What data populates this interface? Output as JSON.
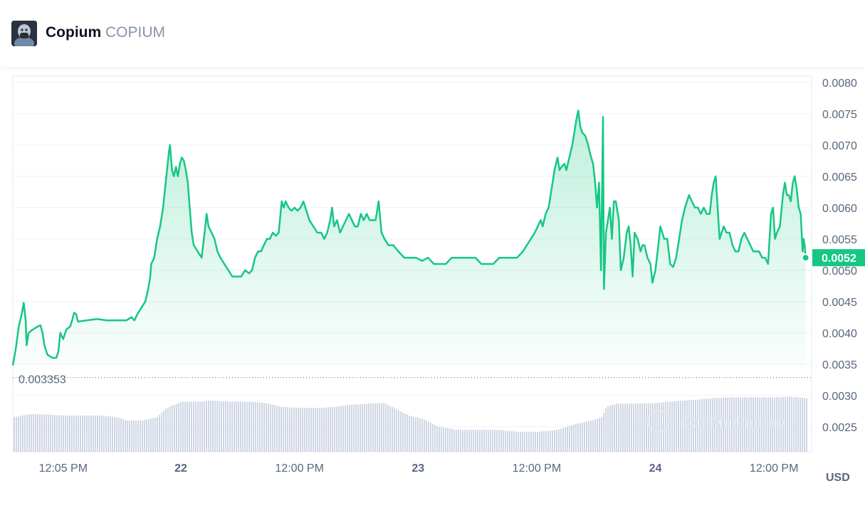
{
  "header": {
    "name": "Copium",
    "symbol": "COPIUM",
    "avatar_icon": "copium-avatar-icon"
  },
  "colors": {
    "line": "#16c784",
    "current_badge": "#16c784",
    "volume": "#cfd6e4",
    "grid": "#eff2f5",
    "axis_text": "#58667e"
  },
  "watermark": "CoinMarketCap",
  "chart_data": {
    "type": "area",
    "currency_label": "USD",
    "current_price": 0.0052,
    "current_price_label": "0.0052",
    "reference_price_label": "0.003353",
    "reference_price": 0.003353,
    "ylim": [
      0.0021,
      0.0081
    ],
    "y_ticks": [
      {
        "value": 0.008,
        "label": "0.0080"
      },
      {
        "value": 0.0075,
        "label": "0.0075"
      },
      {
        "value": 0.007,
        "label": "0.0070"
      },
      {
        "value": 0.0065,
        "label": "0.0065"
      },
      {
        "value": 0.006,
        "label": "0.0060"
      },
      {
        "value": 0.0055,
        "label": "0.0055"
      },
      {
        "value": 0.005,
        "label": "0.0050"
      },
      {
        "value": 0.0045,
        "label": "0.0045"
      },
      {
        "value": 0.004,
        "label": "0.0040"
      },
      {
        "value": 0.0035,
        "label": "0.0035"
      },
      {
        "value": 0.003,
        "label": "0.0030"
      },
      {
        "value": 0.0025,
        "label": "0.0025"
      }
    ],
    "x_range_hours": [
      0,
      80.3
    ],
    "x_ticks": [
      {
        "hours": 5.1,
        "label": "12:05 PM",
        "bold": false
      },
      {
        "hours": 17,
        "label": "22",
        "bold": true
      },
      {
        "hours": 29,
        "label": "12:00 PM",
        "bold": false
      },
      {
        "hours": 41,
        "label": "23",
        "bold": true
      },
      {
        "hours": 53,
        "label": "12:00 PM",
        "bold": false
      },
      {
        "hours": 65,
        "label": "24",
        "bold": true
      },
      {
        "hours": 77,
        "label": "12:00 PM",
        "bold": false
      }
    ],
    "price_series": [
      [
        0,
        0.00348
      ],
      [
        0.3,
        0.00375
      ],
      [
        0.6,
        0.0041
      ],
      [
        0.9,
        0.0043
      ],
      [
        1.1,
        0.00448
      ],
      [
        1.3,
        0.0042
      ],
      [
        1.4,
        0.0038
      ],
      [
        1.6,
        0.004
      ],
      [
        2,
        0.00405
      ],
      [
        2.5,
        0.0041
      ],
      [
        2.8,
        0.00412
      ],
      [
        3,
        0.004
      ],
      [
        3.2,
        0.0038
      ],
      [
        3.5,
        0.00365
      ],
      [
        4,
        0.0036
      ],
      [
        4.4,
        0.0036
      ],
      [
        4.6,
        0.0037
      ],
      [
        4.8,
        0.004
      ],
      [
        5.1,
        0.0039
      ],
      [
        5.4,
        0.00405
      ],
      [
        5.8,
        0.0041
      ],
      [
        6,
        0.0042
      ],
      [
        6.2,
        0.00432
      ],
      [
        6.4,
        0.0043
      ],
      [
        6.6,
        0.00418
      ],
      [
        7.5,
        0.0042
      ],
      [
        8.5,
        0.00422
      ],
      [
        9.5,
        0.0042
      ],
      [
        10.5,
        0.0042
      ],
      [
        11.5,
        0.0042
      ],
      [
        12,
        0.00425
      ],
      [
        12.3,
        0.0042
      ],
      [
        12.6,
        0.0043
      ],
      [
        13,
        0.0044
      ],
      [
        13.4,
        0.0045
      ],
      [
        13.7,
        0.0047
      ],
      [
        13.9,
        0.0049
      ],
      [
        14,
        0.0051
      ],
      [
        14.3,
        0.0052
      ],
      [
        14.6,
        0.0055
      ],
      [
        14.9,
        0.0057
      ],
      [
        15.2,
        0.006
      ],
      [
        15.4,
        0.0063
      ],
      [
        15.6,
        0.0066
      ],
      [
        15.8,
        0.0069
      ],
      [
        15.9,
        0.007
      ],
      [
        16.1,
        0.0066
      ],
      [
        16.3,
        0.0065
      ],
      [
        16.5,
        0.00665
      ],
      [
        16.7,
        0.0065
      ],
      [
        16.9,
        0.0067
      ],
      [
        17.1,
        0.0068
      ],
      [
        17.3,
        0.00675
      ],
      [
        17.5,
        0.0066
      ],
      [
        17.7,
        0.0064
      ],
      [
        17.9,
        0.006
      ],
      [
        18.1,
        0.0056
      ],
      [
        18.3,
        0.0054
      ],
      [
        18.7,
        0.0053
      ],
      [
        19.1,
        0.0052
      ],
      [
        19.4,
        0.0056
      ],
      [
        19.6,
        0.0059
      ],
      [
        19.8,
        0.0057
      ],
      [
        20.1,
        0.0056
      ],
      [
        20.4,
        0.0055
      ],
      [
        20.7,
        0.0053
      ],
      [
        21,
        0.0052
      ],
      [
        21.4,
        0.0051
      ],
      [
        21.8,
        0.005
      ],
      [
        22.2,
        0.0049
      ],
      [
        22.7,
        0.0049
      ],
      [
        23.1,
        0.0049
      ],
      [
        23.5,
        0.005
      ],
      [
        23.9,
        0.00495
      ],
      [
        24.2,
        0.005
      ],
      [
        24.5,
        0.0052
      ],
      [
        24.8,
        0.0053
      ],
      [
        25.1,
        0.0053
      ],
      [
        25.4,
        0.0054
      ],
      [
        25.7,
        0.0055
      ],
      [
        26,
        0.0055
      ],
      [
        26.3,
        0.0056
      ],
      [
        26.6,
        0.00555
      ],
      [
        26.9,
        0.0056
      ],
      [
        27.2,
        0.0061
      ],
      [
        27.4,
        0.006
      ],
      [
        27.6,
        0.0061
      ],
      [
        27.9,
        0.006
      ],
      [
        28.2,
        0.00595
      ],
      [
        28.5,
        0.006
      ],
      [
        28.8,
        0.00595
      ],
      [
        29.1,
        0.006
      ],
      [
        29.4,
        0.0061
      ],
      [
        29.7,
        0.00595
      ],
      [
        30,
        0.0058
      ],
      [
        30.4,
        0.0057
      ],
      [
        30.8,
        0.0056
      ],
      [
        31.2,
        0.0056
      ],
      [
        31.5,
        0.0055
      ],
      [
        31.8,
        0.0056
      ],
      [
        32.1,
        0.0058
      ],
      [
        32.3,
        0.006
      ],
      [
        32.5,
        0.0057
      ],
      [
        32.8,
        0.0058
      ],
      [
        33.1,
        0.0056
      ],
      [
        33.4,
        0.0057
      ],
      [
        33.7,
        0.0058
      ],
      [
        34,
        0.0059
      ],
      [
        34.3,
        0.0058
      ],
      [
        34.6,
        0.0057
      ],
      [
        34.9,
        0.0057
      ],
      [
        35.2,
        0.0059
      ],
      [
        35.5,
        0.0058
      ],
      [
        35.8,
        0.0059
      ],
      [
        36.1,
        0.0058
      ],
      [
        36.4,
        0.0058
      ],
      [
        36.7,
        0.0058
      ],
      [
        37,
        0.0061
      ],
      [
        37.3,
        0.0056
      ],
      [
        37.6,
        0.0055
      ],
      [
        38,
        0.0054
      ],
      [
        38.5,
        0.0054
      ],
      [
        39,
        0.0053
      ],
      [
        39.6,
        0.0052
      ],
      [
        40.2,
        0.0052
      ],
      [
        40.8,
        0.0052
      ],
      [
        41.4,
        0.00515
      ],
      [
        42,
        0.0052
      ],
      [
        42.6,
        0.0051
      ],
      [
        43.2,
        0.0051
      ],
      [
        43.8,
        0.0051
      ],
      [
        44.4,
        0.0052
      ],
      [
        45,
        0.0052
      ],
      [
        45.6,
        0.0052
      ],
      [
        46.2,
        0.0052
      ],
      [
        46.8,
        0.0052
      ],
      [
        47.4,
        0.0051
      ],
      [
        48,
        0.0051
      ],
      [
        48.6,
        0.0051
      ],
      [
        49.2,
        0.0052
      ],
      [
        49.8,
        0.0052
      ],
      [
        50.4,
        0.0052
      ],
      [
        51,
        0.0052
      ],
      [
        51.6,
        0.0053
      ],
      [
        52,
        0.0054
      ],
      [
        52.4,
        0.0055
      ],
      [
        52.8,
        0.0056
      ],
      [
        53.1,
        0.0057
      ],
      [
        53.4,
        0.0058
      ],
      [
        53.6,
        0.0057
      ],
      [
        53.9,
        0.0059
      ],
      [
        54.2,
        0.006
      ],
      [
        54.5,
        0.0063
      ],
      [
        54.8,
        0.0066
      ],
      [
        55.1,
        0.0068
      ],
      [
        55.3,
        0.0066
      ],
      [
        55.5,
        0.00665
      ],
      [
        55.8,
        0.0067
      ],
      [
        56,
        0.0066
      ],
      [
        56.3,
        0.0068
      ],
      [
        56.6,
        0.007
      ],
      [
        56.8,
        0.0072
      ],
      [
        57,
        0.0074
      ],
      [
        57.2,
        0.00755
      ],
      [
        57.4,
        0.0073
      ],
      [
        57.6,
        0.0072
      ],
      [
        57.9,
        0.00715
      ],
      [
        58.2,
        0.007
      ],
      [
        58.5,
        0.0068
      ],
      [
        58.7,
        0.0067
      ],
      [
        58.9,
        0.0064
      ],
      [
        59.1,
        0.006
      ],
      [
        59.3,
        0.0064
      ],
      [
        59.5,
        0.005
      ],
      [
        59.7,
        0.00745
      ],
      [
        59.8,
        0.0047
      ],
      [
        60,
        0.0056
      ],
      [
        60.2,
        0.0058
      ],
      [
        60.4,
        0.006
      ],
      [
        60.6,
        0.0055
      ],
      [
        60.8,
        0.0061
      ],
      [
        61,
        0.0061
      ],
      [
        61.3,
        0.0058
      ],
      [
        61.5,
        0.005
      ],
      [
        61.8,
        0.0052
      ],
      [
        62.1,
        0.0056
      ],
      [
        62.3,
        0.0057
      ],
      [
        62.5,
        0.0054
      ],
      [
        62.7,
        0.0049
      ],
      [
        62.9,
        0.0056
      ],
      [
        63.2,
        0.0055
      ],
      [
        63.5,
        0.0053
      ],
      [
        63.7,
        0.0054
      ],
      [
        63.9,
        0.0054
      ],
      [
        64.2,
        0.0052
      ],
      [
        64.5,
        0.0051
      ],
      [
        64.7,
        0.0048
      ],
      [
        65,
        0.005
      ],
      [
        65.3,
        0.0054
      ],
      [
        65.5,
        0.0057
      ],
      [
        65.7,
        0.0056
      ],
      [
        65.9,
        0.0055
      ],
      [
        66.2,
        0.0055
      ],
      [
        66.5,
        0.0051
      ],
      [
        66.8,
        0.00505
      ],
      [
        67.1,
        0.0052
      ],
      [
        67.4,
        0.0055
      ],
      [
        67.7,
        0.0058
      ],
      [
        68,
        0.006
      ],
      [
        68.2,
        0.0061
      ],
      [
        68.4,
        0.0062
      ],
      [
        68.7,
        0.0061
      ],
      [
        69,
        0.006
      ],
      [
        69.3,
        0.006
      ],
      [
        69.6,
        0.0059
      ],
      [
        69.9,
        0.006
      ],
      [
        70.2,
        0.0059
      ],
      [
        70.5,
        0.0059
      ],
      [
        70.7,
        0.0062
      ],
      [
        70.9,
        0.0064
      ],
      [
        71.1,
        0.0065
      ],
      [
        71.3,
        0.006
      ],
      [
        71.5,
        0.0055
      ],
      [
        71.7,
        0.0056
      ],
      [
        71.9,
        0.0057
      ],
      [
        72.2,
        0.0056
      ],
      [
        72.5,
        0.0056
      ],
      [
        72.8,
        0.0054
      ],
      [
        73.1,
        0.0053
      ],
      [
        73.4,
        0.0053
      ],
      [
        73.7,
        0.0055
      ],
      [
        74,
        0.0056
      ],
      [
        74.3,
        0.0055
      ],
      [
        74.6,
        0.0054
      ],
      [
        74.9,
        0.0053
      ],
      [
        75.2,
        0.0053
      ],
      [
        75.5,
        0.0053
      ],
      [
        75.8,
        0.0052
      ],
      [
        76.1,
        0.0052
      ],
      [
        76.4,
        0.0051
      ],
      [
        76.7,
        0.0059
      ],
      [
        76.9,
        0.006
      ],
      [
        77.1,
        0.0055
      ],
      [
        77.3,
        0.0056
      ],
      [
        77.6,
        0.0057
      ],
      [
        77.9,
        0.0062
      ],
      [
        78.1,
        0.0064
      ],
      [
        78.3,
        0.0062
      ],
      [
        78.5,
        0.0062
      ],
      [
        78.7,
        0.0061
      ],
      [
        78.9,
        0.0064
      ],
      [
        79.1,
        0.0065
      ],
      [
        79.3,
        0.0063
      ],
      [
        79.5,
        0.006
      ],
      [
        79.7,
        0.0059
      ],
      [
        79.9,
        0.0053
      ],
      [
        80,
        0.0055
      ],
      [
        80.1,
        0.0054
      ],
      [
        80.2,
        0.0052
      ]
    ],
    "volume_series": [
      [
        0,
        0.00265
      ],
      [
        1.5,
        0.0027
      ],
      [
        3,
        0.0027
      ],
      [
        5,
        0.00268
      ],
      [
        7,
        0.00268
      ],
      [
        9,
        0.00268
      ],
      [
        10.5,
        0.00265
      ],
      [
        11.5,
        0.0026
      ],
      [
        13,
        0.0026
      ],
      [
        14.5,
        0.00265
      ],
      [
        15.5,
        0.0028
      ],
      [
        17,
        0.0029
      ],
      [
        19,
        0.0029
      ],
      [
        20,
        0.00292
      ],
      [
        22,
        0.0029
      ],
      [
        24,
        0.0029
      ],
      [
        25.5,
        0.00288
      ],
      [
        27,
        0.00282
      ],
      [
        29,
        0.0028
      ],
      [
        31,
        0.0028
      ],
      [
        32.5,
        0.00282
      ],
      [
        34,
        0.00285
      ],
      [
        36,
        0.00287
      ],
      [
        37.5,
        0.00288
      ],
      [
        38.5,
        0.0028
      ],
      [
        40,
        0.00268
      ],
      [
        41.5,
        0.00262
      ],
      [
        43,
        0.0025
      ],
      [
        45,
        0.00245
      ],
      [
        47,
        0.00245
      ],
      [
        49,
        0.00245
      ],
      [
        51,
        0.00242
      ],
      [
        53,
        0.00242
      ],
      [
        55,
        0.00245
      ],
      [
        57,
        0.00255
      ],
      [
        58.5,
        0.0026
      ],
      [
        59.5,
        0.00265
      ],
      [
        60,
        0.00282
      ],
      [
        61,
        0.00287
      ],
      [
        63,
        0.00287
      ],
      [
        65,
        0.00288
      ],
      [
        67,
        0.00291
      ],
      [
        69,
        0.00293
      ],
      [
        71,
        0.00296
      ],
      [
        73,
        0.00297
      ],
      [
        75,
        0.00297
      ],
      [
        77,
        0.00297
      ],
      [
        78.5,
        0.00298
      ],
      [
        79.5,
        0.00297
      ],
      [
        80.3,
        0.00295
      ]
    ]
  }
}
